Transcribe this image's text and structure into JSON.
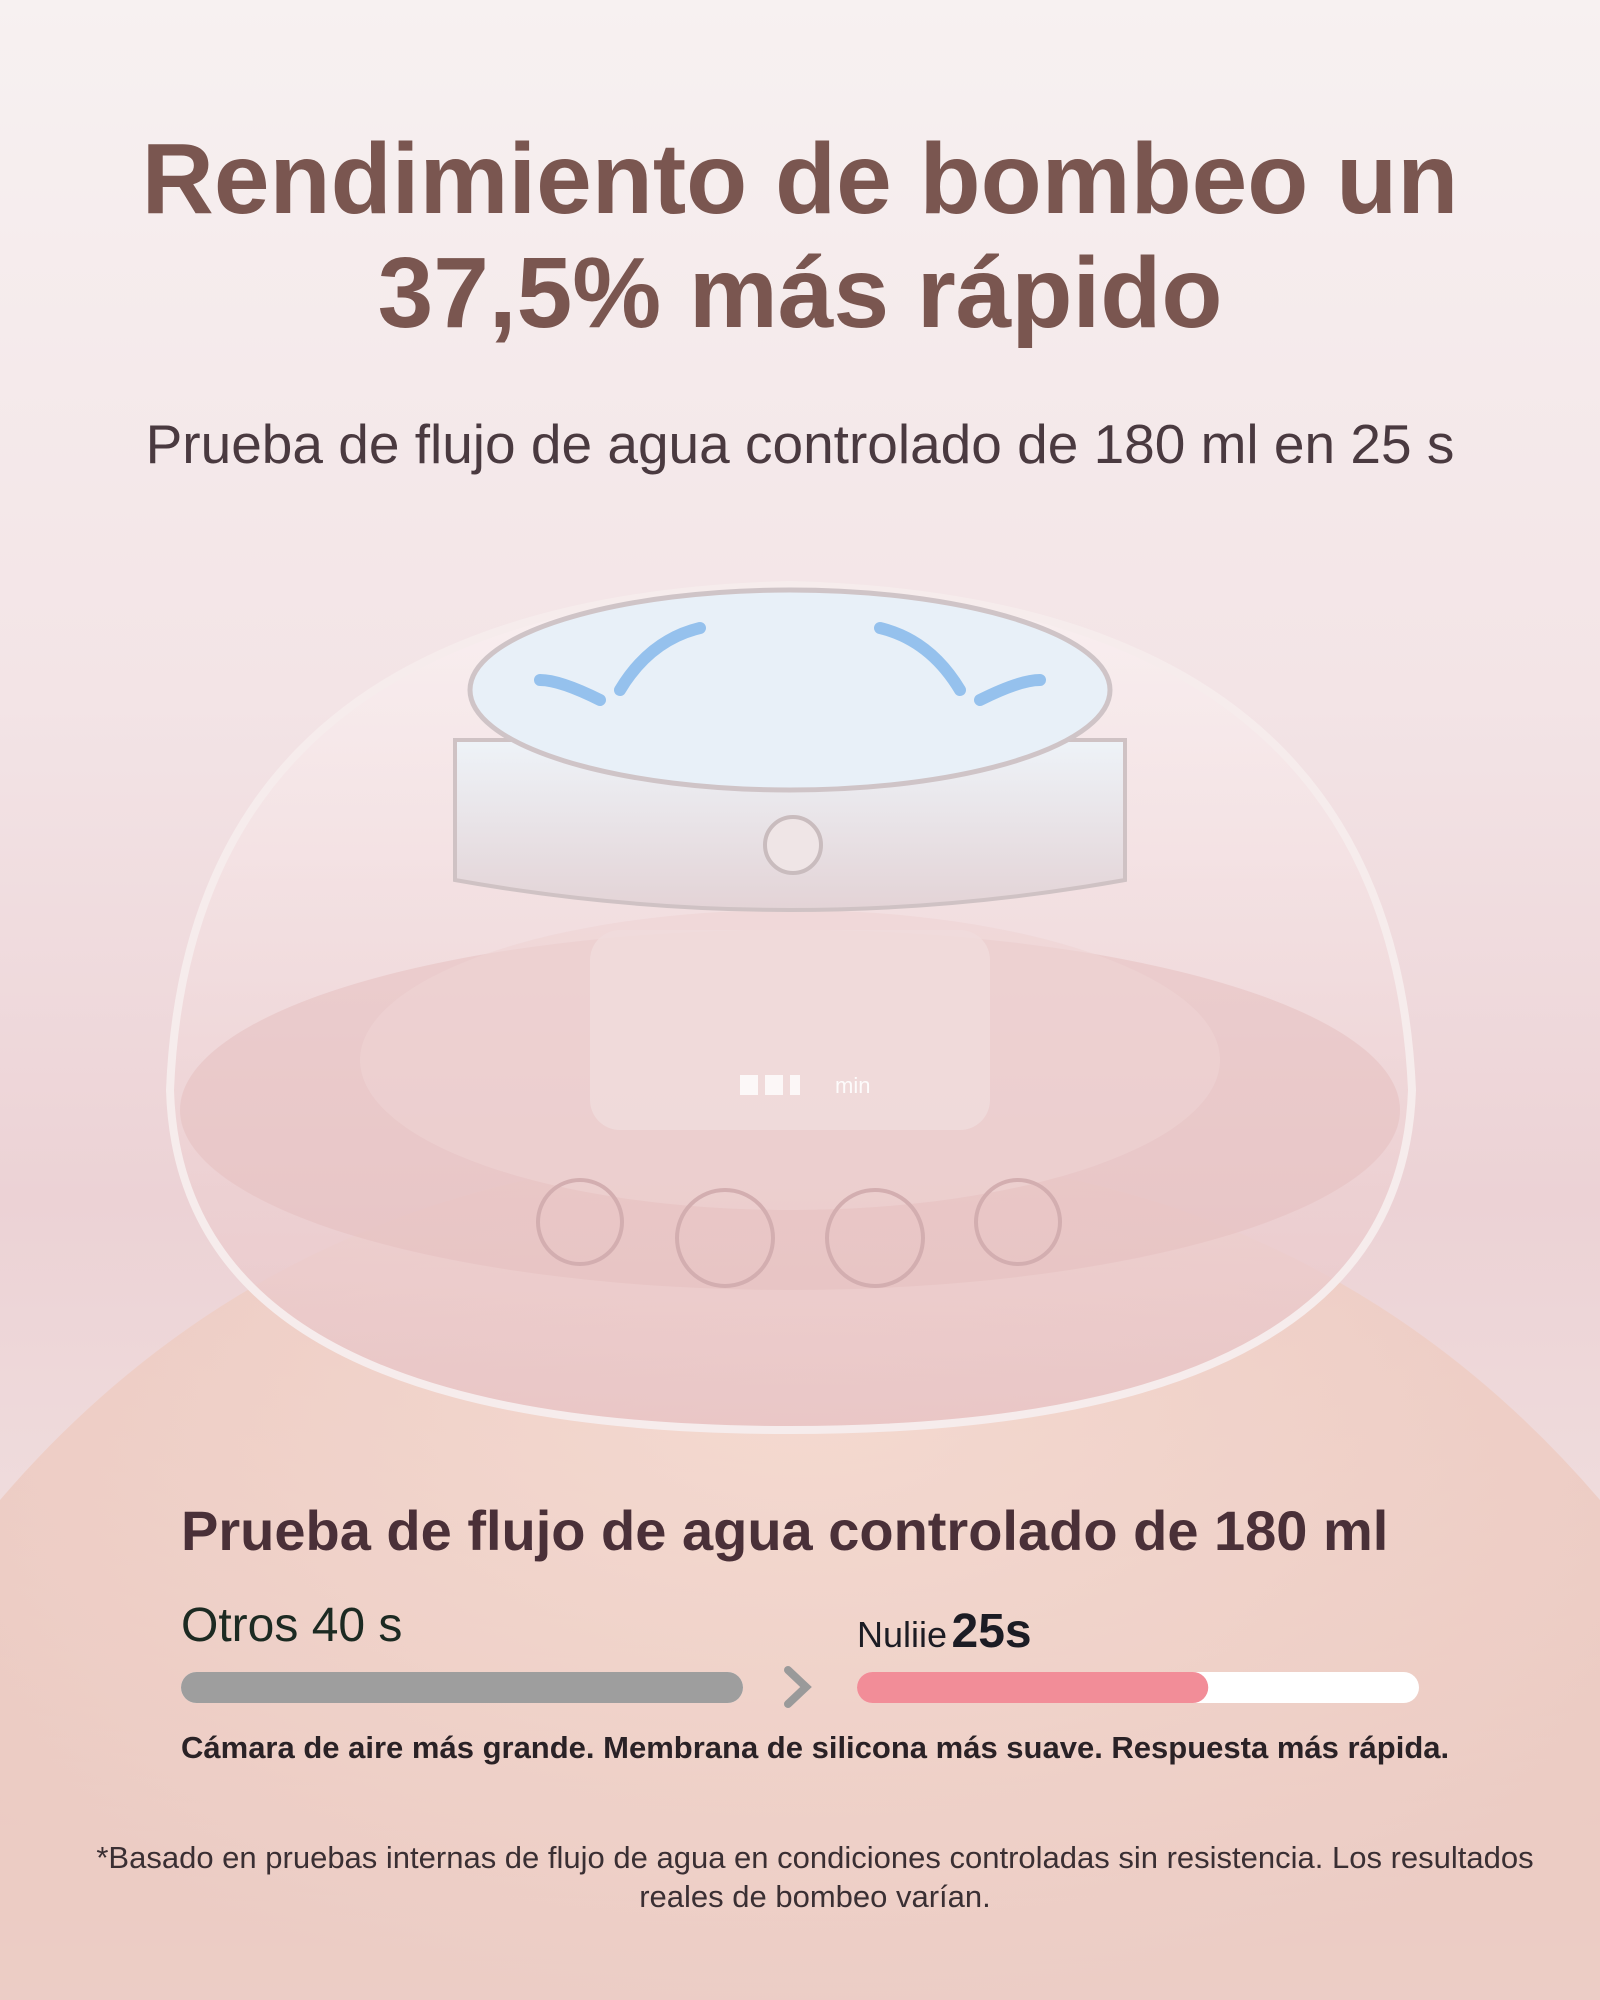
{
  "header": {
    "title_line1": "Rendimiento de bombeo un",
    "title_line2": "37,5% más rápido",
    "subtitle": "Prueba de flujo de agua controlado de 180 ml en 25 s"
  },
  "product_image": {
    "display_text": "min"
  },
  "comparison": {
    "title": "Prueba de flujo de agua controlado de 180 ml",
    "items": [
      {
        "name": "Otros",
        "value_label": "40 s",
        "value": 40,
        "color": "#9e9e9e"
      },
      {
        "name": "Nuliie",
        "value_label": "25s",
        "value": 25,
        "color": "#f28d98"
      }
    ],
    "tagline": "Cámara de aire más grande. Membrana de silicona más suave. Respuesta más rápida."
  },
  "footnote": "*Basado en pruebas internas de flujo de agua en condiciones controladas sin resistencia. Los resultados reales de bombeo varían."
}
